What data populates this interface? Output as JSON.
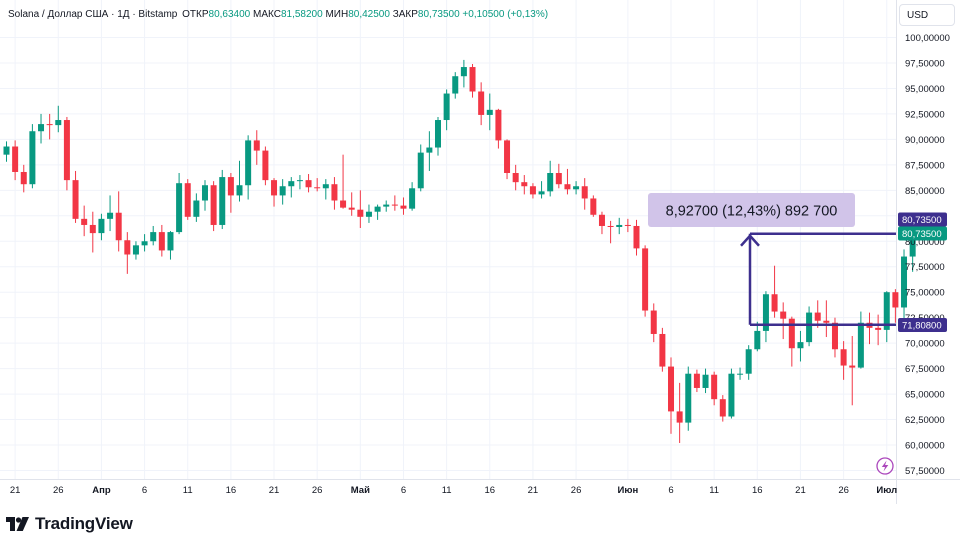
{
  "header": {
    "symbol": "Solana / Доллар США · 1Д · Bitstamp",
    "open_label": "ОТКР",
    "open_value": "80,63400",
    "high_label": "МАКС",
    "high_value": "81,58200",
    "low_label": "МИН",
    "low_value": "80,42500",
    "close_label": "ЗАКР",
    "close_value": "80,73500",
    "change": "+0,10500 (+0,13%)"
  },
  "currency_button": "USD",
  "brand": "TradingView",
  "colors": {
    "up": "#089981",
    "down": "#f23645",
    "measure": "#3d2f8e",
    "measure_label_bg": "#d1c4e9",
    "grid": "#f0f3fa"
  },
  "annotations": {
    "measure_label": "8,92700 (12,43%) 892 700",
    "price_tag_last": "80,73500",
    "price_tag_close": "80,73500",
    "price_tag_base": "71,80800",
    "measure_low_value": 71.808,
    "measure_high_value": 80.735
  },
  "chart_data": {
    "type": "candlestick",
    "symbol": "SOL/USD",
    "interval": "1D",
    "exchange": "Bitstamp",
    "ylim": [
      56.5,
      101.5
    ],
    "y_axis_side": "right",
    "y_ticks": [
      {
        "value": 100,
        "label": "100,00000"
      },
      {
        "value": 97.5,
        "label": "97,50000"
      },
      {
        "value": 95,
        "label": "95,00000"
      },
      {
        "value": 92.5,
        "label": "92,50000"
      },
      {
        "value": 90,
        "label": "90,00000"
      },
      {
        "value": 87.5,
        "label": "87,50000"
      },
      {
        "value": 85,
        "label": "85,00000"
      },
      {
        "value": 82.5,
        "label": "82,50000"
      },
      {
        "value": 80,
        "label": "80,00000"
      },
      {
        "value": 77.5,
        "label": "77,50000"
      },
      {
        "value": 75,
        "label": "75,00000"
      },
      {
        "value": 72.5,
        "label": "72,50000"
      },
      {
        "value": 70,
        "label": "70,00000"
      },
      {
        "value": 67.5,
        "label": "67,50000"
      },
      {
        "value": 65,
        "label": "65,00000"
      },
      {
        "value": 62.5,
        "label": "62,50000"
      },
      {
        "value": 60,
        "label": "60,00000"
      },
      {
        "value": 57.5,
        "label": "57,50000"
      }
    ],
    "x_ticks": [
      {
        "index": 1,
        "label": "21",
        "bold": false
      },
      {
        "index": 6,
        "label": "26",
        "bold": false
      },
      {
        "index": 11,
        "label": "Апр",
        "bold": true
      },
      {
        "index": 16,
        "label": "6",
        "bold": false
      },
      {
        "index": 21,
        "label": "11",
        "bold": false
      },
      {
        "index": 26,
        "label": "16",
        "bold": false
      },
      {
        "index": 31,
        "label": "21",
        "bold": false
      },
      {
        "index": 36,
        "label": "26",
        "bold": false
      },
      {
        "index": 41,
        "label": "Май",
        "bold": true
      },
      {
        "index": 46,
        "label": "6",
        "bold": false
      },
      {
        "index": 51,
        "label": "11",
        "bold": false
      },
      {
        "index": 56,
        "label": "16",
        "bold": false
      },
      {
        "index": 61,
        "label": "21",
        "bold": false
      },
      {
        "index": 66,
        "label": "26",
        "bold": false
      },
      {
        "index": 72,
        "label": "Июн",
        "bold": true
      },
      {
        "index": 77,
        "label": "6",
        "bold": false
      },
      {
        "index": 82,
        "label": "11",
        "bold": false
      },
      {
        "index": 87,
        "label": "16",
        "bold": false
      },
      {
        "index": 92,
        "label": "21",
        "bold": false
      },
      {
        "index": 97,
        "label": "26",
        "bold": false
      },
      {
        "index": 102,
        "label": "Июл",
        "bold": true
      }
    ],
    "candles": [
      [
        88.5,
        89.8,
        87.8,
        89.3
      ],
      [
        89.3,
        89.9,
        86.0,
        86.8
      ],
      [
        86.8,
        87.5,
        84.8,
        85.6
      ],
      [
        85.6,
        91.5,
        85.2,
        90.8
      ],
      [
        90.8,
        92.5,
        89.6,
        91.5
      ],
      [
        91.5,
        92.5,
        90.0,
        91.4
      ],
      [
        91.4,
        93.3,
        90.7,
        91.9
      ],
      [
        91.9,
        92.2,
        85.0,
        86.0
      ],
      [
        86.0,
        86.9,
        81.8,
        82.2
      ],
      [
        82.2,
        83.5,
        80.5,
        81.6
      ],
      [
        81.6,
        82.9,
        78.9,
        80.8
      ],
      [
        80.8,
        82.7,
        80.1,
        82.2
      ],
      [
        82.2,
        84.5,
        81.0,
        82.8
      ],
      [
        82.8,
        84.9,
        79.0,
        80.1
      ],
      [
        80.1,
        80.9,
        76.8,
        78.7
      ],
      [
        78.7,
        80.0,
        78.2,
        79.6
      ],
      [
        79.6,
        80.7,
        79.0,
        80.0
      ],
      [
        80.0,
        81.5,
        79.6,
        80.9
      ],
      [
        80.9,
        81.6,
        78.5,
        79.1
      ],
      [
        79.1,
        81.0,
        78.2,
        80.9
      ],
      [
        80.9,
        86.7,
        80.7,
        85.7
      ],
      [
        85.7,
        86.1,
        82.1,
        82.4
      ],
      [
        82.4,
        84.7,
        81.9,
        84.0
      ],
      [
        84.0,
        86.0,
        83.0,
        85.5
      ],
      [
        85.5,
        85.9,
        81.0,
        81.6
      ],
      [
        81.6,
        87.0,
        81.2,
        86.3
      ],
      [
        86.3,
        86.7,
        82.8,
        84.5
      ],
      [
        84.5,
        87.9,
        83.9,
        85.5
      ],
      [
        85.5,
        90.4,
        84.1,
        89.9
      ],
      [
        89.9,
        90.9,
        87.5,
        88.9
      ],
      [
        88.9,
        89.3,
        85.5,
        86.0
      ],
      [
        86.0,
        86.2,
        83.4,
        84.5
      ],
      [
        84.5,
        86.1,
        83.6,
        85.4
      ],
      [
        85.4,
        86.3,
        84.3,
        85.9
      ],
      [
        85.9,
        86.5,
        85.1,
        86.0
      ],
      [
        86.0,
        86.6,
        84.8,
        85.3
      ],
      [
        85.3,
        86.2,
        84.9,
        85.2
      ],
      [
        85.2,
        86.1,
        84.1,
        85.6
      ],
      [
        85.6,
        86.3,
        83.1,
        84.0
      ],
      [
        84.0,
        88.5,
        83.2,
        83.3
      ],
      [
        83.3,
        84.8,
        82.5,
        83.1
      ],
      [
        83.1,
        85.0,
        81.3,
        82.4
      ],
      [
        82.4,
        83.6,
        81.8,
        82.9
      ],
      [
        82.9,
        83.6,
        82.1,
        83.4
      ],
      [
        83.4,
        84.0,
        82.9,
        83.6
      ],
      [
        83.6,
        84.5,
        83.0,
        83.5
      ],
      [
        83.5,
        84.3,
        82.6,
        83.2
      ],
      [
        83.2,
        85.8,
        83.0,
        85.2
      ],
      [
        85.2,
        89.5,
        84.9,
        88.7
      ],
      [
        88.7,
        90.8,
        86.9,
        89.2
      ],
      [
        89.2,
        92.2,
        88.4,
        91.9
      ],
      [
        91.9,
        94.9,
        90.9,
        94.5
      ],
      [
        94.5,
        96.6,
        94.0,
        96.2
      ],
      [
        96.2,
        97.8,
        95.1,
        97.1
      ],
      [
        97.1,
        97.4,
        94.1,
        94.7
      ],
      [
        94.7,
        95.6,
        91.4,
        92.4
      ],
      [
        92.4,
        94.5,
        90.9,
        92.9
      ],
      [
        92.9,
        93.0,
        89.1,
        89.9
      ],
      [
        89.9,
        90.0,
        86.1,
        86.7
      ],
      [
        86.7,
        87.5,
        85.0,
        85.8
      ],
      [
        85.8,
        86.5,
        84.6,
        85.4
      ],
      [
        85.4,
        85.7,
        84.2,
        84.6
      ],
      [
        84.6,
        85.9,
        84.2,
        84.9
      ],
      [
        84.9,
        87.9,
        84.4,
        86.7
      ],
      [
        86.7,
        87.6,
        85.2,
        85.6
      ],
      [
        85.6,
        87.1,
        84.6,
        85.1
      ],
      [
        85.1,
        85.9,
        84.6,
        85.4
      ],
      [
        85.4,
        86.2,
        83.1,
        84.2
      ],
      [
        84.2,
        84.5,
        82.4,
        82.6
      ],
      [
        82.6,
        82.9,
        80.7,
        81.5
      ],
      [
        81.5,
        82.0,
        79.8,
        81.4
      ],
      [
        81.4,
        82.3,
        80.7,
        81.6
      ],
      [
        81.6,
        82.2,
        80.9,
        81.5
      ],
      [
        81.5,
        82.1,
        78.6,
        79.3
      ],
      [
        79.3,
        79.6,
        72.6,
        73.2
      ],
      [
        73.2,
        73.9,
        70.1,
        70.9
      ],
      [
        70.9,
        71.5,
        67.2,
        67.7
      ],
      [
        67.7,
        68.6,
        61.1,
        63.3
      ],
      [
        63.3,
        66.1,
        60.2,
        62.2
      ],
      [
        62.2,
        67.7,
        61.4,
        67.0
      ],
      [
        67.0,
        67.4,
        65.2,
        65.6
      ],
      [
        65.6,
        67.5,
        65.1,
        66.9
      ],
      [
        66.9,
        67.2,
        63.9,
        64.5
      ],
      [
        64.5,
        64.9,
        62.3,
        62.8
      ],
      [
        62.8,
        67.5,
        62.6,
        67.0
      ],
      [
        67.0,
        67.6,
        66.4,
        67.0
      ],
      [
        67.0,
        69.8,
        66.4,
        69.4
      ],
      [
        69.4,
        72.1,
        69.2,
        71.2
      ],
      [
        71.2,
        75.1,
        70.1,
        74.8
      ],
      [
        74.8,
        77.6,
        72.5,
        73.1
      ],
      [
        73.1,
        74.0,
        70.4,
        72.4
      ],
      [
        72.4,
        72.6,
        67.7,
        69.5
      ],
      [
        69.5,
        71.2,
        68.2,
        70.1
      ],
      [
        70.1,
        73.6,
        69.7,
        73.0
      ],
      [
        73.0,
        74.2,
        71.5,
        72.2
      ],
      [
        72.2,
        74.2,
        70.6,
        72.0
      ],
      [
        72.0,
        72.5,
        68.6,
        69.4
      ],
      [
        69.4,
        70.2,
        66.4,
        67.8
      ],
      [
        67.8,
        70.7,
        63.9,
        67.6
      ],
      [
        67.6,
        73.1,
        67.5,
        72.0
      ],
      [
        72.0,
        73.0,
        69.9,
        71.5
      ],
      [
        71.5,
        72.8,
        69.8,
        71.3
      ],
      [
        71.3,
        75.1,
        70.1,
        75.0
      ],
      [
        75.0,
        75.3,
        72.0,
        73.5
      ],
      [
        73.5,
        79.2,
        72.3,
        78.5
      ],
      [
        78.5,
        82.5,
        77.0,
        80.6
      ],
      [
        80.634,
        81.582,
        80.425,
        80.735
      ]
    ]
  }
}
